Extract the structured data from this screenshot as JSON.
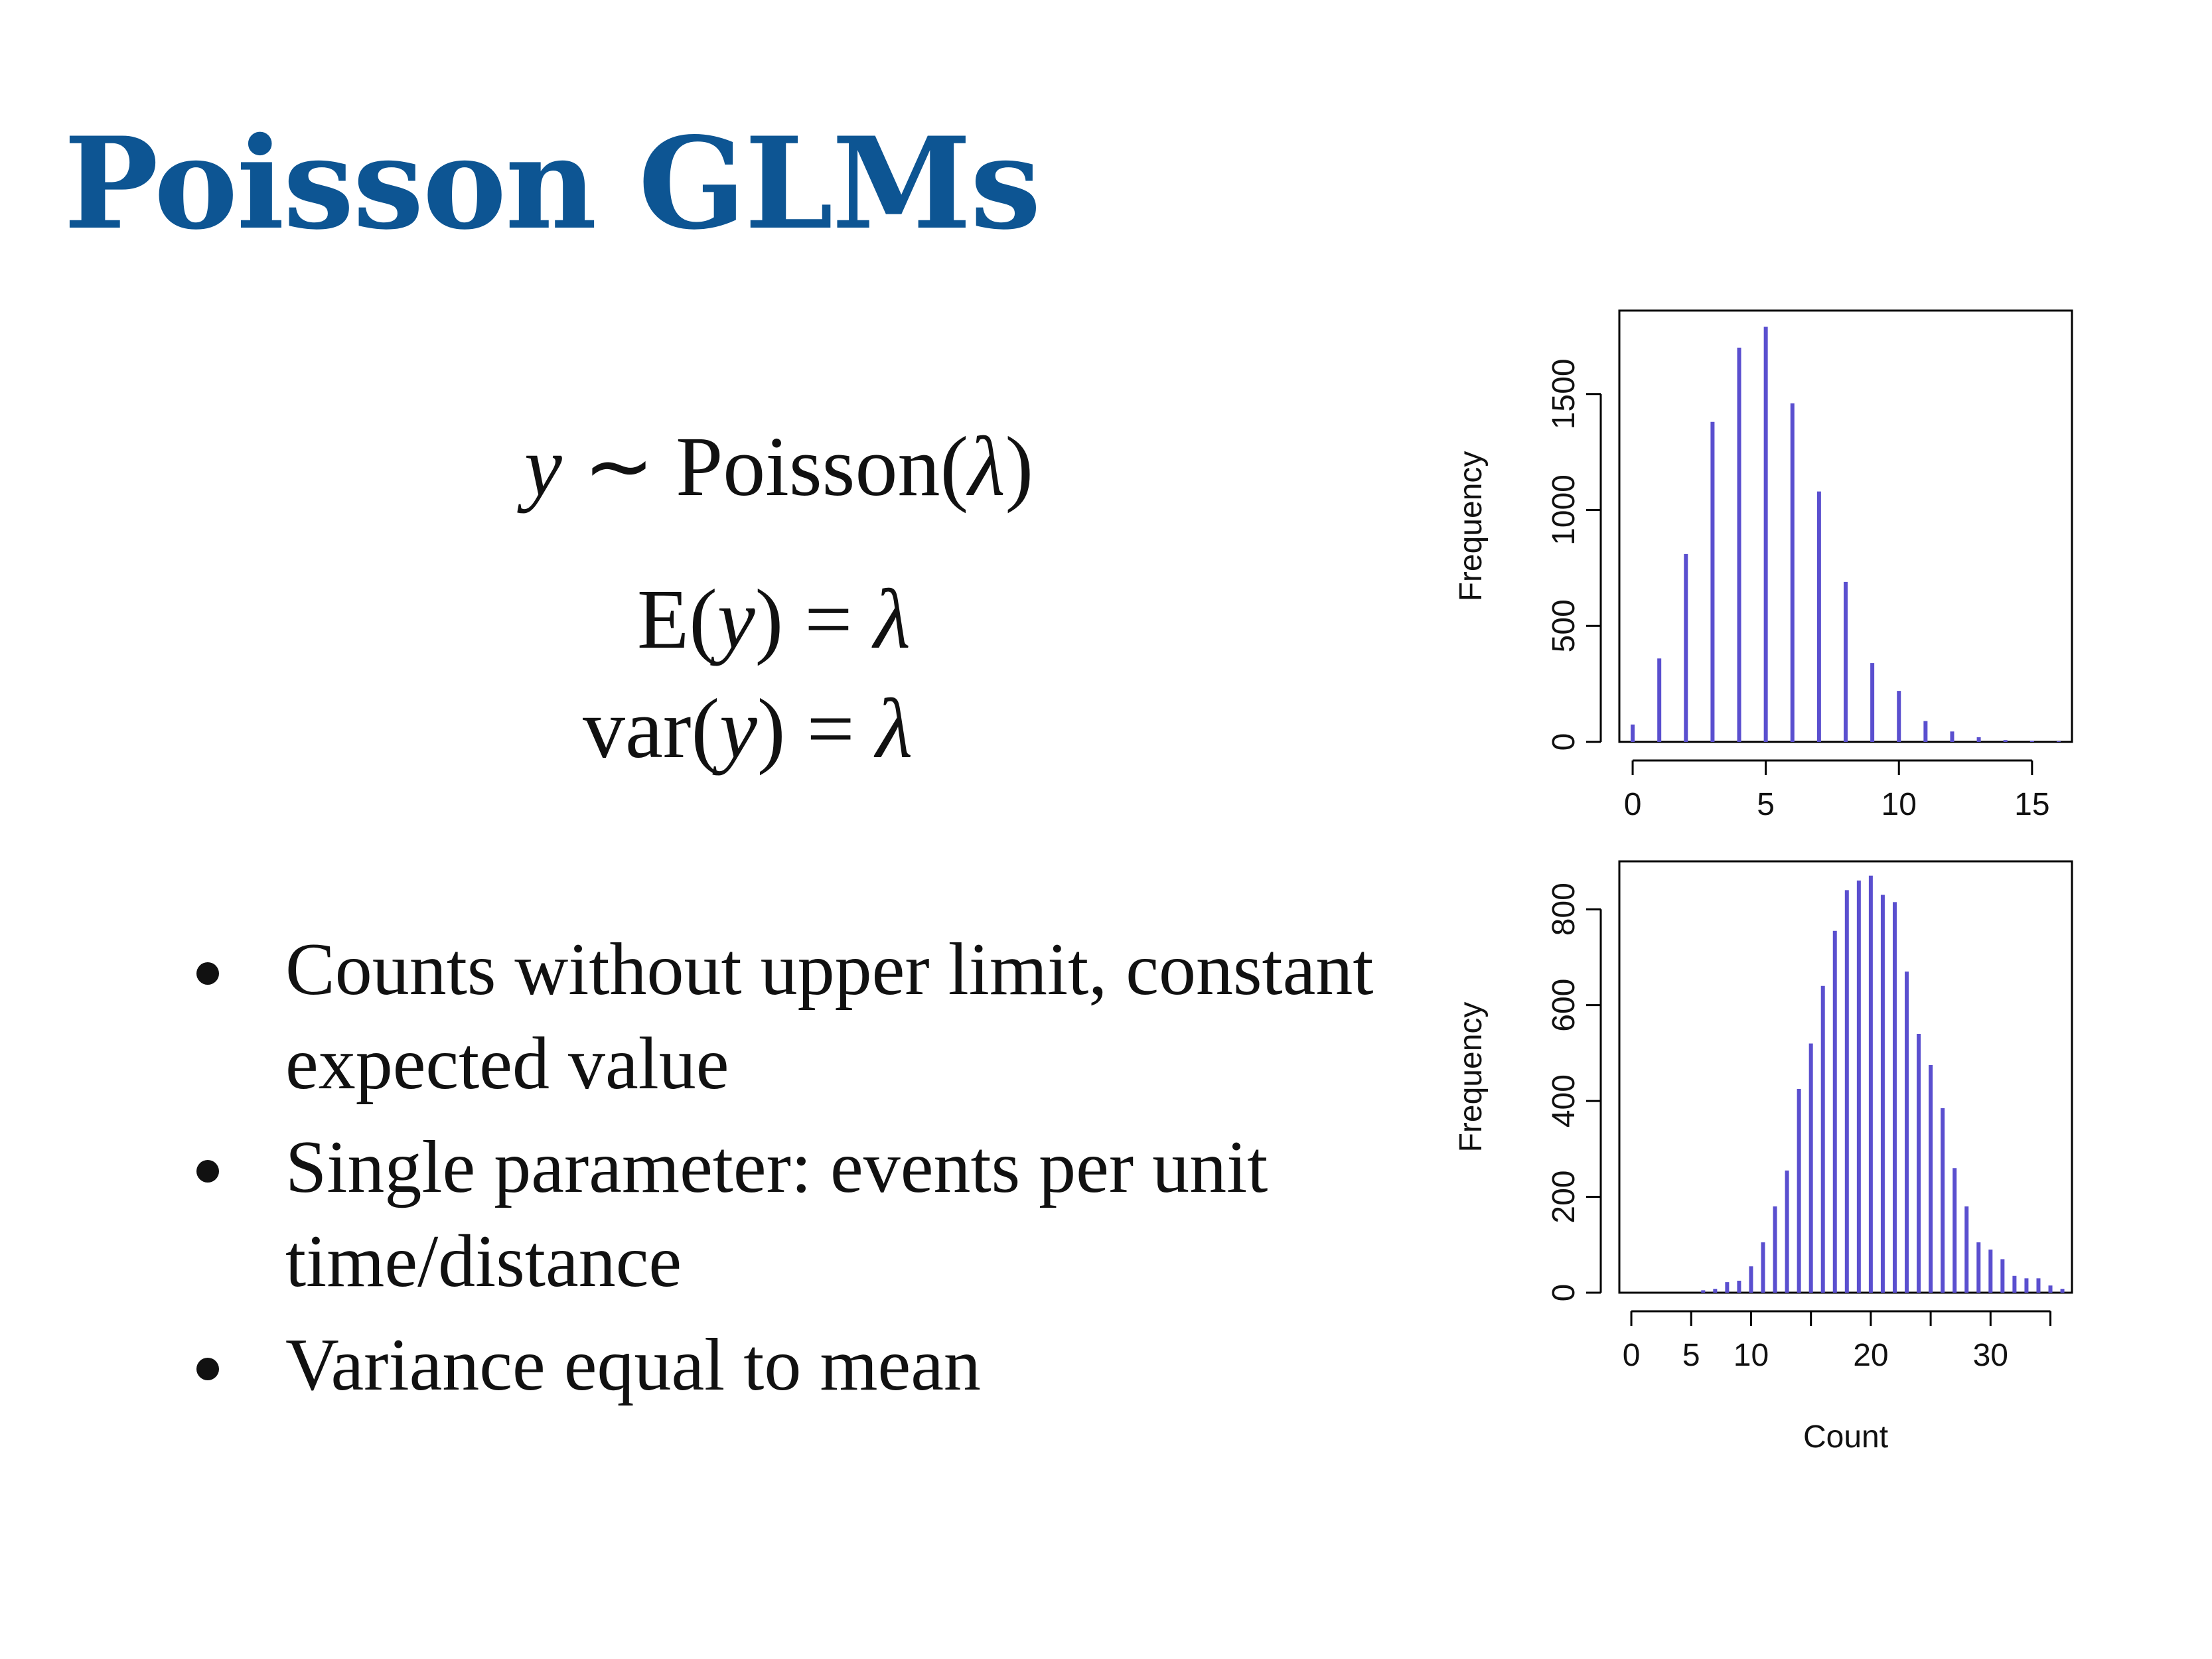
{
  "title": "Poisson GLMs",
  "equations": {
    "eq1": {
      "lhs": "y",
      "rel": " ∼ ",
      "fn": "Poisson(",
      "param": "λ",
      "close": ")"
    },
    "eq2": {
      "fn": "E(",
      "arg": "y",
      "close": ")",
      "rel": " = ",
      "rhs": "λ"
    },
    "eq3": {
      "fn": "var(",
      "arg": "y",
      "close": ")",
      "rel": " = ",
      "rhs": "λ"
    }
  },
  "bullets": [
    {
      "text": "Counts without upper limit, constant expected value"
    },
    {
      "text": "Single parameter: events per unit time/distance"
    },
    {
      "text": "Variance equal to mean"
    }
  ],
  "colors": {
    "title": "#0d5593",
    "bars": "#5a4fcf"
  },
  "chart_data": [
    {
      "type": "bar",
      "ylabel": "Frequency",
      "xlabel": "",
      "x": [
        0,
        1,
        2,
        3,
        4,
        5,
        6,
        7,
        8,
        9,
        10,
        11,
        12,
        13,
        14,
        15,
        16
      ],
      "values": [
        75,
        360,
        810,
        1380,
        1700,
        1790,
        1460,
        1080,
        690,
        340,
        220,
        90,
        45,
        20,
        8,
        5,
        3
      ],
      "xlim": [
        -0.5,
        16.5
      ],
      "ylim": [
        0,
        1860
      ],
      "xticks": [
        0,
        5,
        10,
        15
      ],
      "yticks": [
        0,
        500,
        1000,
        1500
      ]
    },
    {
      "type": "bar",
      "ylabel": "Frequency",
      "xlabel": "Count",
      "x": [
        6,
        7,
        8,
        9,
        10,
        11,
        12,
        13,
        14,
        15,
        16,
        17,
        18,
        19,
        20,
        21,
        22,
        23,
        24,
        25,
        26,
        27,
        28,
        29,
        30,
        31,
        32,
        33,
        34,
        35,
        36
      ],
      "values": [
        5,
        8,
        22,
        25,
        55,
        105,
        180,
        255,
        425,
        520,
        640,
        755,
        840,
        860,
        870,
        830,
        815,
        670,
        540,
        475,
        385,
        260,
        180,
        105,
        90,
        70,
        35,
        30,
        30,
        15,
        8
      ],
      "xlim": [
        -1,
        36.8
      ],
      "ylim": [
        0,
        900
      ],
      "xticks": [
        0,
        5,
        10,
        20,
        30
      ],
      "extra_ticks": [
        15,
        25,
        35
      ],
      "yticks": [
        0,
        200,
        400,
        600,
        800
      ]
    }
  ]
}
